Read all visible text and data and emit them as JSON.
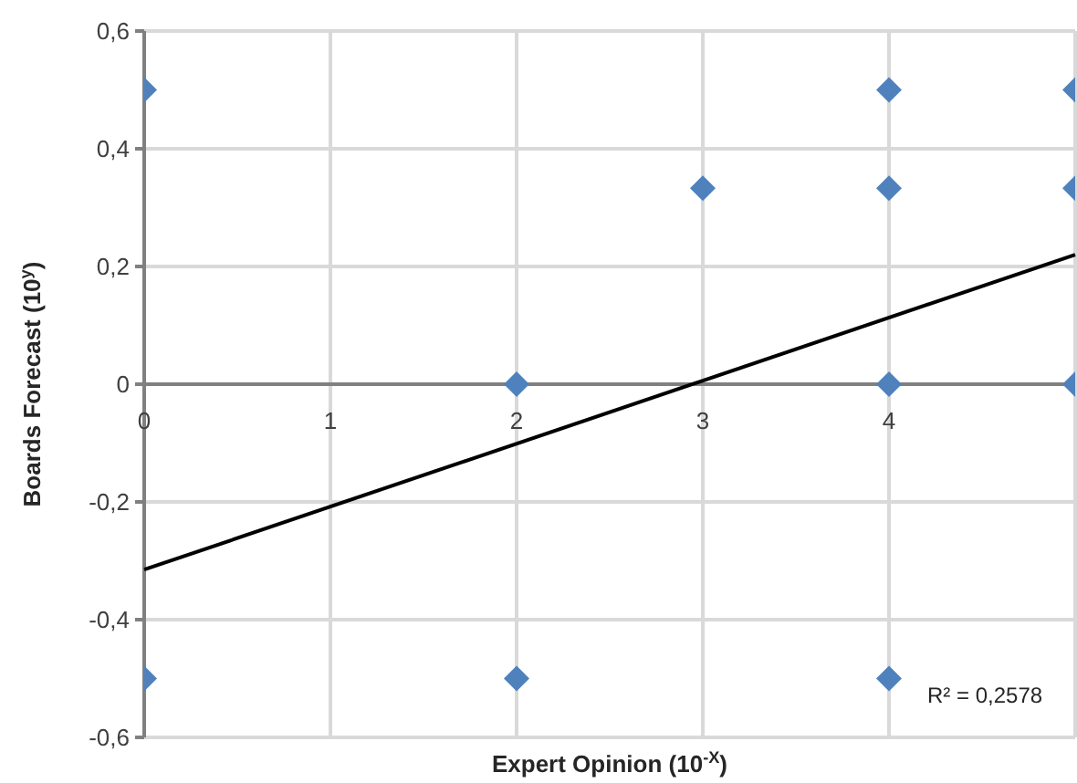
{
  "chart_data": {
    "type": "scatter",
    "xlabel": "Expert Opinion (10$^{-X}$)",
    "ylabel": "Boards Forecast (10$^{y}$)",
    "series": [
      {
        "color": "#4f81bd",
        "marker": "diamond",
        "x": [
          0,
          0,
          2,
          2,
          3,
          4,
          4,
          4,
          4,
          5,
          5,
          5
        ],
        "values": [
          0.5,
          -0.5,
          0,
          -0.5,
          0.333,
          0.5,
          0.333,
          0,
          -0.5,
          0.5,
          0.333,
          0
        ]
      },
      {
        "type": "line",
        "color": "#000000",
        "marker": "none",
        "line_style": "solid",
        "x": [
          0,
          5
        ],
        "values": [
          -0.315,
          0.22
        ]
      }
    ],
    "xlim": [
      0,
      5
    ],
    "ylim": [
      -0.6,
      0.6
    ],
    "xticks": [
      0,
      1,
      2,
      3,
      4,
      {
        "value": 5,
        "label": null
      }
    ],
    "yticks": [
      {
        "value": -0.6,
        "label": "-0,6"
      },
      {
        "value": -0.4,
        "label": "-0,4"
      },
      {
        "value": -0.2,
        "label": "-0,2"
      },
      0,
      {
        "value": 0.2,
        "label": "0,2"
      },
      {
        "value": 0.4,
        "label": "0,4"
      },
      {
        "value": 0.6,
        "label": "0,6"
      }
    ],
    "grid": true,
    "annotations": [
      "R² = 0,2578"
    ]
  }
}
